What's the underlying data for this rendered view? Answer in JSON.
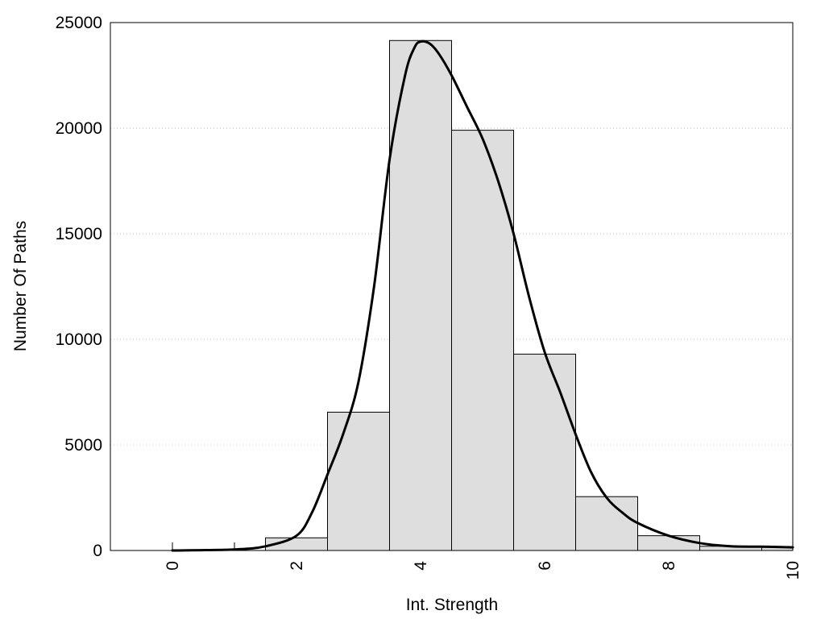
{
  "chart_data": {
    "type": "bar",
    "title": "",
    "xlabel": "Int. Strength",
    "ylabel": "Number Of Paths",
    "xlim": [
      -1,
      10
    ],
    "ylim": [
      0,
      25000
    ],
    "x_ticks": [
      0,
      2,
      4,
      6,
      8,
      10
    ],
    "y_ticks": [
      0,
      5000,
      10000,
      15000,
      20000,
      25000
    ],
    "grid": "horizontal-dotted",
    "bar_color": "#dedede",
    "bar_edge_color": "#000000",
    "bin_width": 1,
    "bins": [
      {
        "x": 0,
        "value": 0
      },
      {
        "x": 1,
        "value": 0
      },
      {
        "x": 2,
        "value": 600
      },
      {
        "x": 3,
        "value": 6550
      },
      {
        "x": 4,
        "value": 24150
      },
      {
        "x": 5,
        "value": 19900
      },
      {
        "x": 6,
        "value": 9300
      },
      {
        "x": 7,
        "value": 2550
      },
      {
        "x": 8,
        "value": 700
      },
      {
        "x": 9,
        "value": 200
      },
      {
        "x": 10,
        "value": 150
      }
    ],
    "series": [
      {
        "type": "line",
        "color": "#000000",
        "x": [
          0,
          1,
          1.5,
          2,
          2.25,
          2.5,
          2.75,
          3,
          3.25,
          3.5,
          3.75,
          3.9,
          4,
          4.15,
          4.3,
          4.5,
          4.75,
          5,
          5.25,
          5.5,
          5.75,
          6,
          6.25,
          6.5,
          6.75,
          7,
          7.25,
          7.5,
          8,
          8.5,
          9,
          9.5,
          10
        ],
        "y": [
          0,
          50,
          200,
          700,
          1800,
          3600,
          5500,
          8000,
          12500,
          18500,
          22500,
          23800,
          24100,
          24000,
          23500,
          22500,
          21000,
          19500,
          17500,
          15000,
          12000,
          9400,
          7500,
          5500,
          3700,
          2500,
          1800,
          1300,
          700,
          350,
          200,
          180,
          150
        ]
      }
    ]
  }
}
